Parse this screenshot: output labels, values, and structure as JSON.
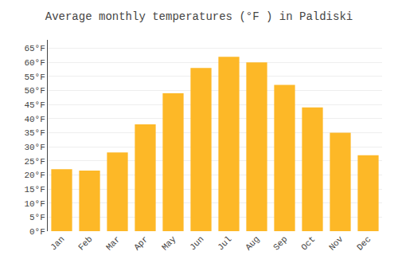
{
  "chart_data": {
    "type": "bar",
    "title": "Average monthly temperatures (°F ) in Paldiski",
    "categories": [
      "Jan",
      "Feb",
      "Mar",
      "Apr",
      "May",
      "Jun",
      "Jul",
      "Aug",
      "Sep",
      "Oct",
      "Nov",
      "Dec"
    ],
    "values": [
      22,
      21.5,
      28,
      38,
      49,
      58,
      62,
      60,
      52,
      44,
      35,
      27
    ],
    "color": "#FDB827",
    "ylim": [
      0,
      68
    ],
    "yticks": [
      {
        "value": 0,
        "label": "0°F"
      },
      {
        "value": 5,
        "label": "5°F"
      },
      {
        "value": 10,
        "label": "10°F"
      },
      {
        "value": 15,
        "label": "15°F"
      },
      {
        "value": 20,
        "label": "20°F"
      },
      {
        "value": 25,
        "label": "25°F"
      },
      {
        "value": 30,
        "label": "30°F"
      },
      {
        "value": 35,
        "label": "35°F"
      },
      {
        "value": 40,
        "label": "40°F"
      },
      {
        "value": 45,
        "label": "45°F"
      },
      {
        "value": 50,
        "label": "50°F"
      },
      {
        "value": 55,
        "label": "55°F"
      },
      {
        "value": 60,
        "label": "60°F"
      },
      {
        "value": 65,
        "label": "65°F"
      }
    ],
    "grid": true
  }
}
